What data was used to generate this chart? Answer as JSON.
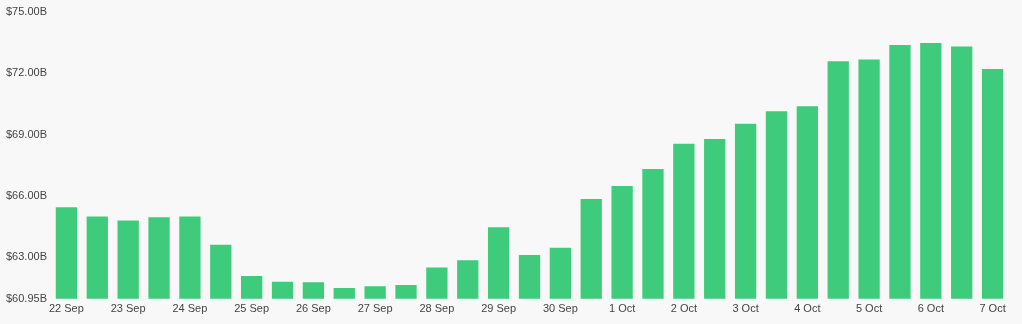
{
  "chart_data": {
    "type": "bar",
    "categories": [
      "22 Sep",
      null,
      "23 Sep",
      null,
      "24 Sep",
      null,
      "25 Sep",
      null,
      "26 Sep",
      null,
      "27 Sep",
      null,
      "28 Sep",
      null,
      "29 Sep",
      null,
      "30 Sep",
      null,
      "1 Oct",
      null,
      "2 Oct",
      null,
      "3 Oct",
      null,
      "4 Oct",
      null,
      "5 Oct",
      null,
      "6 Oct",
      null,
      "7 Oct"
    ],
    "values": [
      65.43,
      64.98,
      64.79,
      64.95,
      64.98,
      63.6,
      62.07,
      61.78,
      61.76,
      61.48,
      61.57,
      61.62,
      62.48,
      62.84,
      64.45,
      63.1,
      63.45,
      65.84,
      66.48,
      67.31,
      68.55,
      68.78,
      69.52,
      70.14,
      70.38,
      72.59,
      72.67,
      73.38,
      73.48,
      73.31,
      72.21
    ],
    "color": "#3ecc7c",
    "ylim": [
      60.95,
      75
    ],
    "yticks": [
      {
        "value": 60.95,
        "label": "$60.95B"
      },
      {
        "value": 63,
        "label": "$63.00B"
      },
      {
        "value": 66,
        "label": "$66.00B"
      },
      {
        "value": 69,
        "label": "$69.00B"
      },
      {
        "value": 72,
        "label": "$72.00B"
      },
      {
        "value": 75,
        "label": "$75.00B"
      }
    ],
    "grid": false,
    "legend": false
  }
}
